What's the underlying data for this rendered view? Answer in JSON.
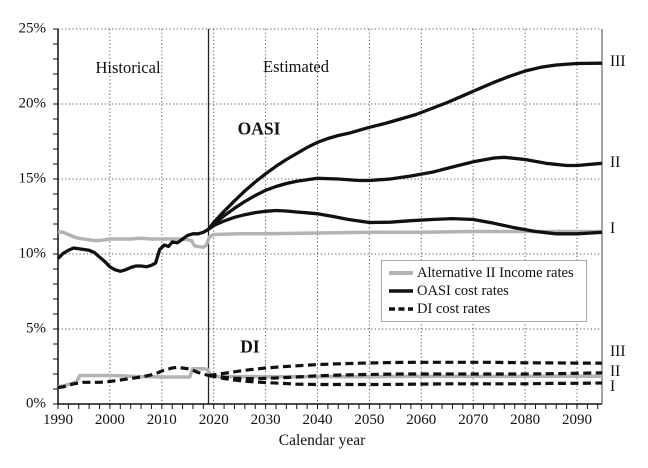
{
  "labels": {
    "historical": "Historical",
    "estimated": "Estimated",
    "oasi": "OASI",
    "di": "DI"
  },
  "x_axis": {
    "title": "Calendar year",
    "tick_labels": [
      "1990",
      "2000",
      "2010",
      "2020",
      "2030",
      "2040",
      "2050",
      "2060",
      "2070",
      "2080",
      "2090"
    ],
    "tick_years": [
      1990,
      2000,
      2010,
      2020,
      2030,
      2040,
      2050,
      2060,
      2070,
      2080,
      2090
    ]
  },
  "y_axis": {
    "tick_labels": [
      "0%",
      "5%",
      "10%",
      "15%",
      "20%",
      "25%"
    ],
    "tick_values": [
      0,
      5,
      10,
      15,
      20,
      25
    ]
  },
  "legend": {
    "entries": [
      {
        "label": "Alternative II Income rates",
        "color": "#b3b3b3",
        "dash": "",
        "width": 4
      },
      {
        "label": "OASI cost rates",
        "color": "#111111",
        "dash": "",
        "width": 3.4
      },
      {
        "label": "DI cost rates",
        "color": "#111111",
        "dash": "8 4.5",
        "width": 3.4
      }
    ]
  },
  "right_labels": [
    {
      "text": "III",
      "value": 22.8
    },
    {
      "text": "II",
      "value": 16.07
    },
    {
      "text": "I",
      "value": 11.67
    },
    {
      "text": "III",
      "value": 3.47
    },
    {
      "text": "II",
      "value": 2.13
    },
    {
      "text": "I",
      "value": 1.13
    }
  ],
  "chart_data": {
    "type": "line",
    "title": "",
    "xlabel": "Calendar year",
    "ylabel": "",
    "x_range": [
      1990,
      2095
    ],
    "y_range": [
      0,
      25
    ],
    "y_tick_step": 5,
    "x_tick_step": 10,
    "grid": "dotted at each 5% and each decade",
    "divider_year": 2019,
    "colors": {
      "cost": "#111111",
      "income": "#b3b3b3",
      "grid": "#555555"
    },
    "series": [
      {
        "name": "Alternative II Income rates (OASI)",
        "color": "#b3b3b3",
        "dash": "",
        "width": 3.5,
        "x": [
          1990,
          1991,
          1992,
          1993,
          1994,
          1995,
          1996,
          1997,
          1998,
          1999,
          2000,
          2002,
          2004,
          2006,
          2008,
          2010,
          2012,
          2014,
          2015,
          2015.7,
          2016.3,
          2017,
          2018,
          2018.6,
          2019.2,
          2020,
          2025,
          2030,
          2040,
          2050,
          2060,
          2070,
          2080,
          2090,
          2095
        ],
        "y": [
          11.5,
          11.45,
          11.3,
          11.15,
          11.05,
          11.0,
          10.95,
          10.9,
          10.9,
          10.95,
          11.0,
          11.0,
          11.0,
          11.05,
          11.0,
          11.0,
          11.0,
          11.0,
          10.95,
          10.9,
          10.55,
          10.5,
          10.45,
          10.6,
          11.15,
          11.3,
          11.35,
          11.35,
          11.4,
          11.45,
          11.45,
          11.5,
          11.5,
          11.5,
          11.5
        ]
      },
      {
        "name": "Alternative II Income rates (DI)",
        "color": "#b3b3b3",
        "dash": "",
        "width": 3.5,
        "x": [
          1990,
          1991,
          1992,
          1993,
          1993.6,
          1994.2,
          1996,
          1998,
          2000,
          2002,
          2004,
          2006,
          2008,
          2010,
          2012,
          2014,
          2015.4,
          2015.9,
          2018.2,
          2018.8,
          2019.5,
          2020,
          2030,
          2040,
          2050,
          2060,
          2070,
          2080,
          2090,
          2095
        ],
        "y": [
          1.15,
          1.2,
          1.3,
          1.4,
          1.5,
          1.9,
          1.9,
          1.9,
          1.9,
          1.88,
          1.85,
          1.83,
          1.82,
          1.8,
          1.8,
          1.8,
          1.8,
          2.35,
          2.35,
          2.3,
          1.85,
          1.83,
          1.82,
          1.83,
          1.83,
          1.84,
          1.84,
          1.85,
          1.85,
          1.85
        ]
      },
      {
        "name": "OASI cost rate historical",
        "color": "#111111",
        "dash": "",
        "width": 3.3,
        "x": [
          1990,
          1991,
          1992,
          1993,
          1994,
          1995,
          1996,
          1997,
          1998,
          1999,
          2000,
          2001,
          2002,
          2003,
          2004,
          2005,
          2006,
          2007,
          2008,
          2008.8,
          2009.6,
          2010.5,
          2011.3,
          2012,
          2013,
          2014,
          2015,
          2016,
          2017,
          2018,
          2019
        ],
        "y": [
          9.7,
          10.05,
          10.25,
          10.4,
          10.35,
          10.3,
          10.25,
          10.1,
          9.8,
          9.5,
          9.15,
          8.95,
          8.85,
          8.95,
          9.1,
          9.2,
          9.2,
          9.15,
          9.25,
          9.4,
          10.3,
          10.6,
          10.5,
          10.8,
          10.75,
          11.0,
          11.25,
          11.35,
          11.35,
          11.45,
          11.65
        ]
      },
      {
        "name": "OASI cost rate I",
        "color": "#111111",
        "dash": "",
        "width": 3.3,
        "x": [
          2019,
          2020,
          2022,
          2024,
          2026,
          2028,
          2030,
          2032,
          2034,
          2036,
          2038,
          2040,
          2043,
          2046,
          2050,
          2054,
          2058,
          2062,
          2066,
          2070,
          2074,
          2078,
          2082,
          2086,
          2090,
          2095
        ],
        "y": [
          11.65,
          11.9,
          12.2,
          12.45,
          12.62,
          12.76,
          12.85,
          12.9,
          12.87,
          12.8,
          12.75,
          12.68,
          12.5,
          12.3,
          12.1,
          12.12,
          12.22,
          12.3,
          12.36,
          12.3,
          12.05,
          11.75,
          11.5,
          11.35,
          11.35,
          11.45
        ]
      },
      {
        "name": "OASI cost rate II",
        "color": "#111111",
        "dash": "",
        "width": 3.3,
        "x": [
          2019,
          2020,
          2022,
          2024,
          2026,
          2028,
          2030,
          2032,
          2034,
          2036,
          2038,
          2040,
          2044,
          2048,
          2050,
          2054,
          2058,
          2062,
          2066,
          2070,
          2074,
          2076,
          2080,
          2084,
          2088,
          2090,
          2095
        ],
        "y": [
          11.65,
          12.0,
          12.55,
          13.05,
          13.5,
          13.9,
          14.25,
          14.5,
          14.7,
          14.85,
          14.95,
          15.05,
          15.0,
          14.9,
          14.9,
          15.0,
          15.2,
          15.45,
          15.8,
          16.15,
          16.4,
          16.45,
          16.3,
          16.05,
          15.9,
          15.9,
          16.05
        ]
      },
      {
        "name": "OASI cost rate III",
        "color": "#111111",
        "dash": "",
        "width": 3.3,
        "x": [
          2019,
          2020,
          2022,
          2024,
          2026,
          2028,
          2030,
          2032,
          2034,
          2036,
          2038,
          2040,
          2042,
          2044,
          2046,
          2048,
          2050,
          2053,
          2056,
          2059,
          2062,
          2065,
          2068,
          2071,
          2074,
          2077,
          2080,
          2083,
          2086,
          2090,
          2095
        ],
        "y": [
          11.65,
          12.1,
          12.85,
          13.55,
          14.2,
          14.8,
          15.35,
          15.85,
          16.3,
          16.7,
          17.1,
          17.45,
          17.7,
          17.9,
          18.05,
          18.25,
          18.45,
          18.7,
          19.0,
          19.3,
          19.7,
          20.1,
          20.55,
          21.0,
          21.45,
          21.85,
          22.2,
          22.45,
          22.6,
          22.7,
          22.72
        ]
      },
      {
        "name": "DI cost rate historical",
        "color": "#111111",
        "dash": "8 4.5",
        "width": 3.2,
        "x": [
          1990,
          1991,
          1992,
          1993,
          1994,
          1995,
          1996,
          1998,
          2000,
          2002,
          2004,
          2006,
          2008,
          2009,
          2010,
          2011,
          2012,
          2013,
          2014,
          2015,
          2016,
          2017,
          2018,
          2019
        ],
        "y": [
          1.1,
          1.15,
          1.25,
          1.35,
          1.4,
          1.45,
          1.45,
          1.45,
          1.5,
          1.6,
          1.7,
          1.8,
          1.95,
          2.05,
          2.2,
          2.3,
          2.4,
          2.45,
          2.4,
          2.35,
          2.25,
          2.1,
          2.0,
          1.9
        ]
      },
      {
        "name": "DI cost rate I",
        "color": "#111111",
        "dash": "8 4.5",
        "width": 3.2,
        "x": [
          2019,
          2020,
          2022,
          2024,
          2026,
          2028,
          2030,
          2033,
          2036,
          2040,
          2045,
          2050,
          2055,
          2060,
          2065,
          2070,
          2075,
          2080,
          2085,
          2090,
          2095
        ],
        "y": [
          1.9,
          1.85,
          1.7,
          1.6,
          1.52,
          1.47,
          1.43,
          1.38,
          1.33,
          1.3,
          1.3,
          1.3,
          1.31,
          1.33,
          1.35,
          1.35,
          1.35,
          1.35,
          1.37,
          1.38,
          1.4
        ]
      },
      {
        "name": "DI cost rate II",
        "color": "#111111",
        "dash": "8 4.5",
        "width": 3.2,
        "x": [
          2019,
          2020,
          2022,
          2024,
          2026,
          2028,
          2030,
          2033,
          2036,
          2040,
          2044,
          2048,
          2052,
          2056,
          2060,
          2065,
          2070,
          2075,
          2080,
          2085,
          2090,
          2095
        ],
        "y": [
          1.9,
          1.88,
          1.78,
          1.72,
          1.69,
          1.69,
          1.71,
          1.75,
          1.8,
          1.88,
          1.93,
          1.96,
          1.98,
          2.0,
          2.0,
          2.0,
          2.0,
          2.0,
          2.0,
          2.02,
          2.05,
          2.08
        ]
      },
      {
        "name": "DI cost rate III",
        "color": "#111111",
        "dash": "8 4.5",
        "width": 3.2,
        "x": [
          2019,
          2020,
          2022,
          2024,
          2026,
          2028,
          2030,
          2033,
          2036,
          2040,
          2044,
          2048,
          2052,
          2056,
          2060,
          2065,
          2070,
          2075,
          2080,
          2085,
          2090,
          2095
        ],
        "y": [
          1.9,
          1.95,
          2.05,
          2.15,
          2.25,
          2.33,
          2.4,
          2.48,
          2.55,
          2.63,
          2.68,
          2.72,
          2.75,
          2.77,
          2.78,
          2.78,
          2.78,
          2.77,
          2.75,
          2.74,
          2.73,
          2.73
        ]
      }
    ]
  }
}
